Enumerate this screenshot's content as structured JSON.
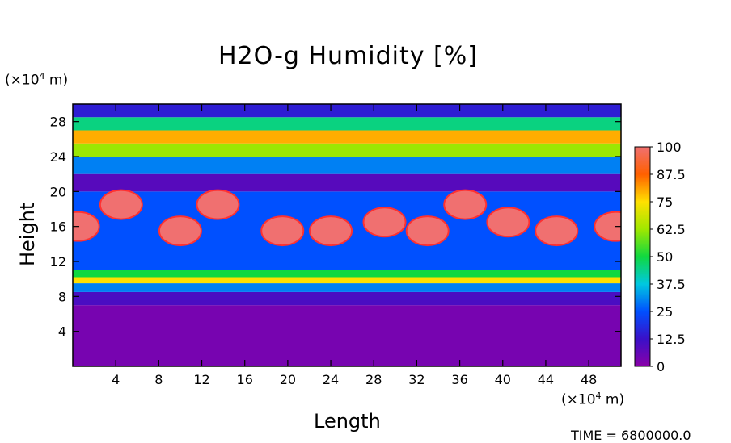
{
  "chart_data": {
    "type": "heatmap",
    "title": "H2O-g Humidity [%]",
    "xlabel": "Length",
    "ylabel": "Height",
    "x_unit_prefix": "(×10",
    "x_unit_exp": "4",
    "x_unit_suffix": " m)",
    "y_unit_prefix": "(×10",
    "y_unit_exp": "4",
    "y_unit_suffix": " m)",
    "xlim": [
      0,
      51
    ],
    "ylim": [
      0,
      30
    ],
    "x_ticks": [
      4,
      8,
      12,
      16,
      20,
      24,
      28,
      32,
      36,
      40,
      44,
      48
    ],
    "y_ticks": [
      4,
      8,
      12,
      16,
      20,
      24,
      28
    ],
    "colorbar": {
      "range": [
        0,
        100
      ],
      "ticks": [
        "0",
        "12.5",
        "25",
        "37.5",
        "50",
        "62.5",
        "75",
        "87.5",
        "100"
      ]
    },
    "layers": [
      {
        "y": [
          0,
          7
        ],
        "value": 3
      },
      {
        "y": [
          7,
          8.5
        ],
        "value": 10
      },
      {
        "y": [
          8.5,
          9.5
        ],
        "value": 30
      },
      {
        "y": [
          9.5,
          10.2
        ],
        "value": 75
      },
      {
        "y": [
          10.2,
          11
        ],
        "value": 50
      },
      {
        "y": [
          11,
          20
        ],
        "value": 25
      },
      {
        "y": [
          20,
          22
        ],
        "value": 8
      },
      {
        "y": [
          22,
          24
        ],
        "value": 30
      },
      {
        "y": [
          24,
          25.5
        ],
        "value": 62
      },
      {
        "y": [
          25.5,
          27
        ],
        "value": 80
      },
      {
        "y": [
          27,
          28.5
        ],
        "value": 45
      },
      {
        "y": [
          28.5,
          30
        ],
        "value": 15
      }
    ],
    "saturated_patches": [
      {
        "x": 0.5,
        "y": 16,
        "value": 100
      },
      {
        "x": 4.5,
        "y": 18.5,
        "value": 100
      },
      {
        "x": 10,
        "y": 15.5,
        "value": 100
      },
      {
        "x": 13.5,
        "y": 18.5,
        "value": 100
      },
      {
        "x": 19.5,
        "y": 15.5,
        "value": 100
      },
      {
        "x": 24,
        "y": 15.5,
        "value": 100
      },
      {
        "x": 29,
        "y": 16.5,
        "value": 100
      },
      {
        "x": 33,
        "y": 15.5,
        "value": 100
      },
      {
        "x": 36.5,
        "y": 18.5,
        "value": 100
      },
      {
        "x": 40.5,
        "y": 16.5,
        "value": 100
      },
      {
        "x": 45,
        "y": 15.5,
        "value": 100
      },
      {
        "x": 50.5,
        "y": 16,
        "value": 100
      }
    ],
    "grid": false
  },
  "footer": {
    "time_text": "TIME = 6800000.0"
  }
}
